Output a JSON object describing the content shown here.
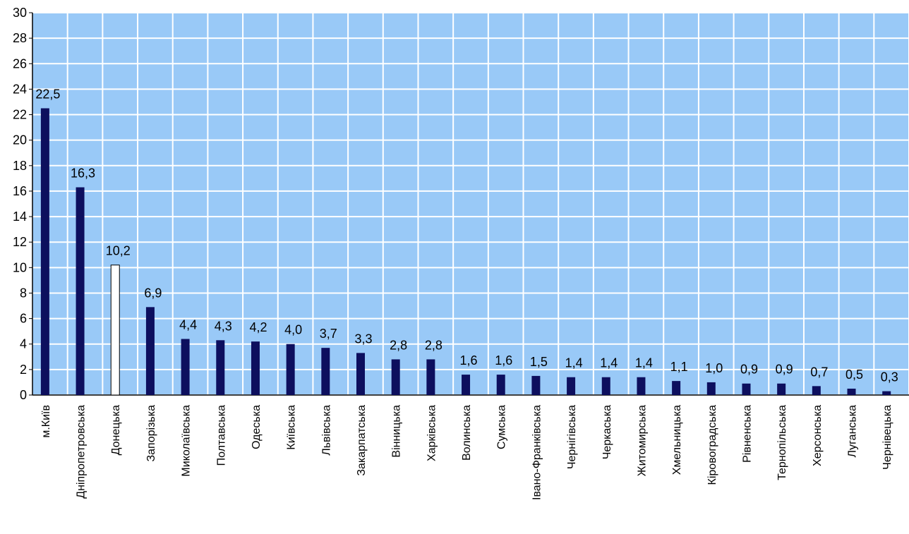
{
  "chart_data": {
    "type": "bar",
    "title": "",
    "xlabel": "",
    "ylabel": "",
    "ylim": [
      0,
      30
    ],
    "yticks": [
      0,
      2,
      4,
      6,
      8,
      10,
      12,
      14,
      16,
      18,
      20,
      22,
      24,
      26,
      28,
      30
    ],
    "grid": true,
    "plot_background": "#99c9f7",
    "grid_color": "#ffffff",
    "bar_color": "#0d0f5e",
    "highlight_bar_color": "#ffffff",
    "highlight_category": "Донецька",
    "categories": [
      "м.Київ",
      "Дніпропетровська",
      "Донецька",
      "Запорізька",
      "Миколаївська",
      "Полтавська",
      "Одеська",
      "Київська",
      "Львівська",
      "Закарпатська",
      "Вінницька",
      "Харківська",
      "Волинська",
      "Сумська",
      "Івано-Франківська",
      "Чернігівська",
      "Черкаська",
      "Житомирська",
      "Хмельницька",
      "Кіровоградська",
      "Рівненська",
      "Тернопільська",
      "Херсонська",
      "Луганська",
      "Чернівецька"
    ],
    "values": [
      22.5,
      16.3,
      10.2,
      6.9,
      4.4,
      4.3,
      4.2,
      4.0,
      3.7,
      3.3,
      2.8,
      2.8,
      1.6,
      1.6,
      1.5,
      1.4,
      1.4,
      1.4,
      1.1,
      1.0,
      0.9,
      0.9,
      0.7,
      0.5,
      0.3
    ],
    "data_labels": [
      "22,5",
      "16,3",
      "10,2",
      "6,9",
      "4,4",
      "4,3",
      "4,2",
      "4,0",
      "3,7",
      "3,3",
      "2,8",
      "2,8",
      "1,6",
      "1,6",
      "1,5",
      "1,4",
      "1,4",
      "1,4",
      "1,1",
      "1,0",
      "0,9",
      "0,9",
      "0,7",
      "0,5",
      "0,3"
    ]
  }
}
